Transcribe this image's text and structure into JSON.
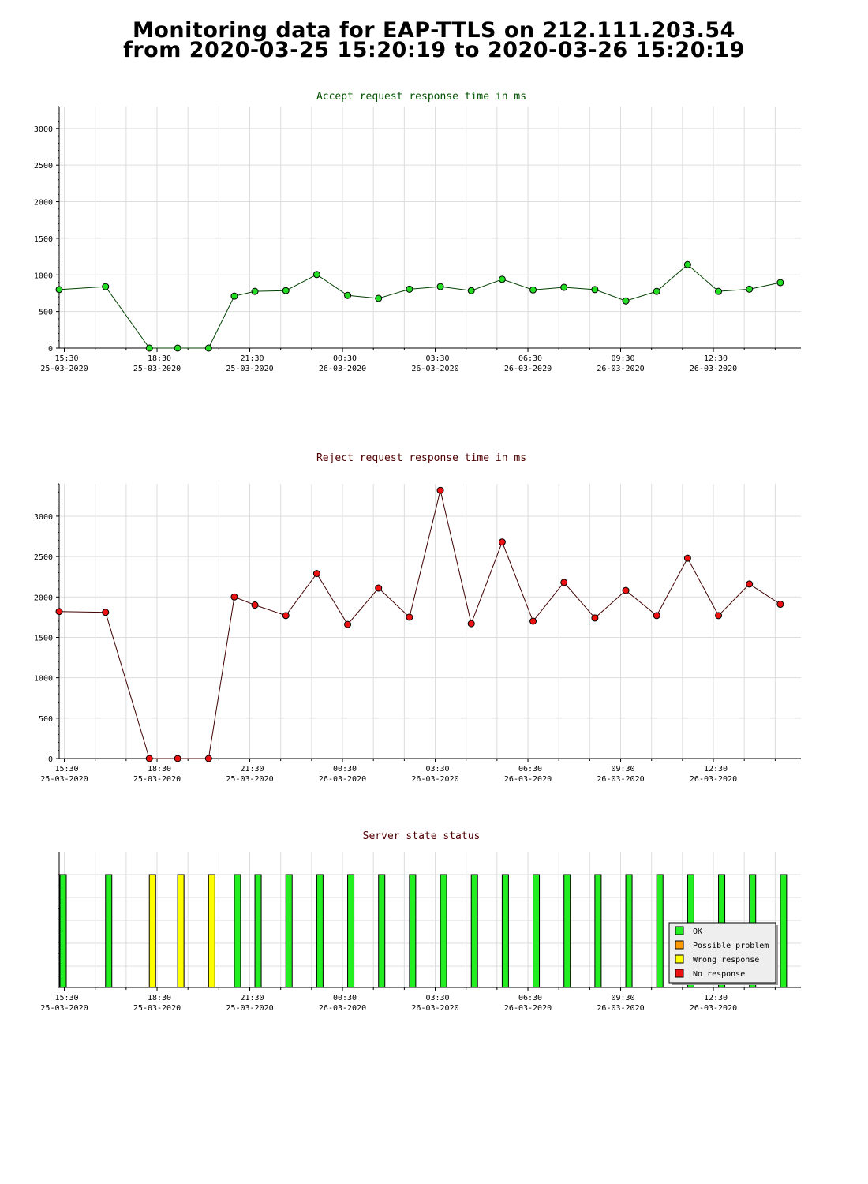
{
  "page": {
    "title_line1": "Monitoring data for EAP-TTLS on 212.111.203.54",
    "title_line2": "from 2020-03-25 15:20:19 to 2020-03-26 15:20:19"
  },
  "colors": {
    "accept_title": "#005000",
    "reject_title": "#500000",
    "status_title": "#500000",
    "accept_marker": "#22dd22",
    "accept_line": "#004000",
    "reject_marker": "#ee1111",
    "reject_line": "#400000",
    "ok": "#22ee22",
    "possible_problem": "#ff9900",
    "wrong_response": "#ffff00",
    "no_response": "#ee1111",
    "grid": "#dddddd"
  },
  "x_axis_ticks": [
    {
      "time": "15:30",
      "date": "25-03-2020"
    },
    {
      "time": "18:30",
      "date": "25-03-2020"
    },
    {
      "time": "21:30",
      "date": "25-03-2020"
    },
    {
      "time": "00:30",
      "date": "26-03-2020"
    },
    {
      "time": "03:30",
      "date": "26-03-2020"
    },
    {
      "time": "06:30",
      "date": "26-03-2020"
    },
    {
      "time": "09:30",
      "date": "26-03-2020"
    },
    {
      "time": "12:30",
      "date": "26-03-2020"
    }
  ],
  "chart_data": [
    {
      "type": "line",
      "title": "Accept request response time in ms",
      "ylim": [
        0,
        3300
      ],
      "yticks": [
        0,
        500,
        1000,
        1500,
        2000,
        2500,
        3000
      ],
      "xlim": [
        "2020-03-25 15:20",
        "2020-03-26 15:20"
      ],
      "grid": true,
      "x": [
        "2020-03-25 15:20",
        "2020-03-25 16:50",
        "2020-03-25 18:15",
        "2020-03-25 19:10",
        "2020-03-25 20:10",
        "2020-03-25 21:00",
        "2020-03-25 21:40",
        "2020-03-25 22:40",
        "2020-03-25 23:40",
        "2020-03-26 00:40",
        "2020-03-26 01:40",
        "2020-03-26 02:40",
        "2020-03-26 03:40",
        "2020-03-26 04:40",
        "2020-03-26 05:40",
        "2020-03-26 06:40",
        "2020-03-26 07:40",
        "2020-03-26 08:40",
        "2020-03-26 09:40",
        "2020-03-26 10:40",
        "2020-03-26 11:40",
        "2020-03-26 12:40",
        "2020-03-26 13:40",
        "2020-03-26 14:40"
      ],
      "values": [
        800,
        840,
        0,
        0,
        0,
        710,
        775,
        785,
        1005,
        720,
        680,
        805,
        840,
        785,
        940,
        795,
        830,
        800,
        645,
        775,
        1140,
        775,
        805,
        895
      ]
    },
    {
      "type": "line",
      "title": "Reject request response time in ms",
      "ylim": [
        0,
        3400
      ],
      "yticks": [
        0,
        500,
        1000,
        1500,
        2000,
        2500,
        3000
      ],
      "xlim": [
        "2020-03-25 15:20",
        "2020-03-26 15:20"
      ],
      "grid": true,
      "x": [
        "2020-03-25 15:20",
        "2020-03-25 16:50",
        "2020-03-25 18:15",
        "2020-03-25 19:10",
        "2020-03-25 20:10",
        "2020-03-25 21:00",
        "2020-03-25 21:40",
        "2020-03-25 22:40",
        "2020-03-25 23:40",
        "2020-03-26 00:40",
        "2020-03-26 01:40",
        "2020-03-26 02:40",
        "2020-03-26 03:40",
        "2020-03-26 04:40",
        "2020-03-26 05:40",
        "2020-03-26 06:40",
        "2020-03-26 07:40",
        "2020-03-26 08:40",
        "2020-03-26 09:40",
        "2020-03-26 10:40",
        "2020-03-26 11:40",
        "2020-03-26 12:40",
        "2020-03-26 13:40",
        "2020-03-26 14:40"
      ],
      "values": [
        1820,
        1810,
        0,
        0,
        0,
        2000,
        1900,
        1770,
        2290,
        1660,
        2110,
        1750,
        3320,
        1670,
        2680,
        1700,
        2180,
        1740,
        2080,
        1770,
        2480,
        1770,
        2160,
        1910
      ]
    },
    {
      "type": "bar",
      "title": "Server state status",
      "xlim": [
        "2020-03-25 15:20",
        "2020-03-26 15:20"
      ],
      "grid": true,
      "legend_position": "bottom-right",
      "legend": [
        "OK",
        "Possible problem",
        "Wrong response",
        "No response"
      ],
      "x": [
        "2020-03-25 15:20",
        "2020-03-25 16:50",
        "2020-03-25 18:15",
        "2020-03-25 19:10",
        "2020-03-25 20:10",
        "2020-03-25 21:00",
        "2020-03-25 21:40",
        "2020-03-25 22:40",
        "2020-03-25 23:40",
        "2020-03-26 00:40",
        "2020-03-26 01:40",
        "2020-03-26 02:40",
        "2020-03-26 03:40",
        "2020-03-26 04:40",
        "2020-03-26 05:40",
        "2020-03-26 06:40",
        "2020-03-26 07:40",
        "2020-03-26 08:40",
        "2020-03-26 09:40",
        "2020-03-26 10:40",
        "2020-03-26 11:40",
        "2020-03-26 12:40",
        "2020-03-26 13:40",
        "2020-03-26 14:40"
      ],
      "status": [
        "OK",
        "OK",
        "Wrong response",
        "Wrong response",
        "Wrong response",
        "OK",
        "OK",
        "OK",
        "OK",
        "OK",
        "OK",
        "OK",
        "OK",
        "OK",
        "OK",
        "OK",
        "OK",
        "OK",
        "OK",
        "OK",
        "OK",
        "OK",
        "OK",
        "OK"
      ]
    }
  ]
}
